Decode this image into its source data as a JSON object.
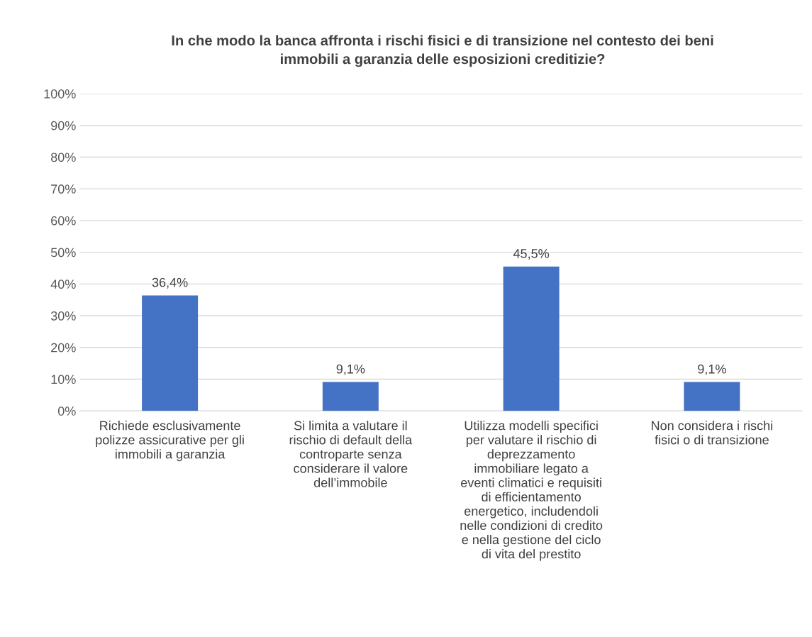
{
  "chart_data": {
    "type": "bar",
    "title": "In che modo la banca affronta i rischi fisici e di transizione nel contesto dei beni\nimmobili a garanzia delle esposizioni creditizie?",
    "categories": [
      "Richiede esclusivamente\npolizze assicurative per gli\nimmobili a garanzia",
      "Si limita a valutare il\nrischio di default della\ncontroparte senza\nconsiderare il valore\ndell’immobile",
      "Utilizza modelli specifici\nper valutare il rischio di\ndeprezzamento\nimmobiliare legato a\neventi climatici e requisiti\ndi efficientamento\nenergetico, includendoli\nnelle condizioni di credito\ne nella gestione del ciclo\ndi vita del prestito",
      "Non considera i rischi\nfisici o di transizione"
    ],
    "values": [
      36.4,
      9.1,
      45.5,
      9.1
    ],
    "value_labels": [
      "36,4%",
      "9,1%",
      "45,5%",
      "9,1%"
    ],
    "color": "#4472c4",
    "ylim": [
      0,
      100
    ],
    "yticks": [
      {
        "value": 0,
        "label": "0%"
      },
      {
        "value": 10,
        "label": "10%"
      },
      {
        "value": 20,
        "label": "20%"
      },
      {
        "value": 30,
        "label": "30%"
      },
      {
        "value": 40,
        "label": "40%"
      },
      {
        "value": 50,
        "label": "50%"
      },
      {
        "value": 60,
        "label": "60%"
      },
      {
        "value": 70,
        "label": "70%"
      },
      {
        "value": 80,
        "label": "80%"
      },
      {
        "value": 90,
        "label": "90%"
      },
      {
        "value": 100,
        "label": "100%"
      }
    ],
    "grid": "y"
  }
}
